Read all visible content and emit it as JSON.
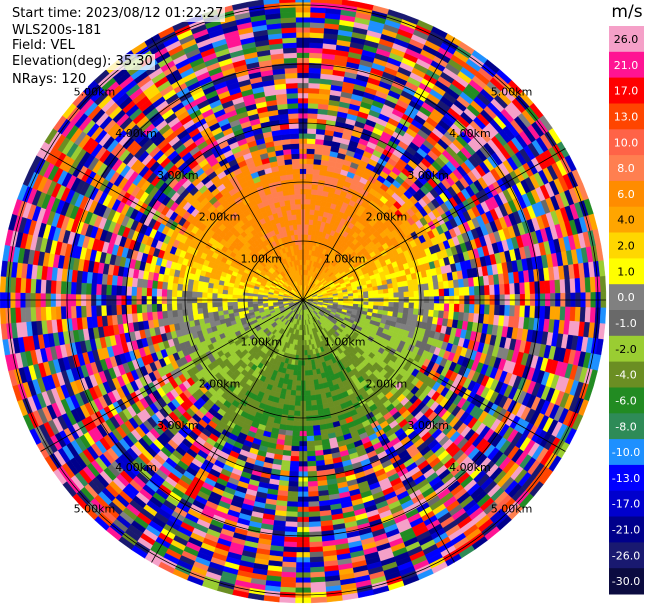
{
  "header": {
    "start_time": "Start time: 2023/08/12 01:22:27",
    "instrument": "WLS200s-181",
    "field": "Field: VEL",
    "elevation": "Elevation(deg): 35.30",
    "nrays": "NRays: 120"
  },
  "chart_data": {
    "type": "heatmap",
    "subtype": "polar-ppi",
    "field": "VEL",
    "units": "m/s",
    "n_rays": 120,
    "elevation_deg": 35.3,
    "range_rings_km": [
      1.0,
      2.0,
      3.0,
      4.0,
      5.0
    ],
    "range_ring_labels": [
      "1.00km",
      "2.00km",
      "3.00km",
      "4.00km",
      "5.00km"
    ],
    "max_range_km": 5.1,
    "grid": true,
    "colorbar": {
      "label": "m/s",
      "position": "right",
      "ticks": [
        26.0,
        21.0,
        17.0,
        13.0,
        10.0,
        8.0,
        6.0,
        4.0,
        2.0,
        1.0,
        0.0,
        -1.0,
        -2.0,
        -4.0,
        -6.0,
        -8.0,
        -10.0,
        -13.0,
        -17.0,
        -21.0,
        -26.0,
        -30.0
      ],
      "tick_labels": [
        "26.0",
        "21.0",
        "17.0",
        "13.0",
        "10.0",
        "8.0",
        "6.0",
        "4.0",
        "2.0",
        "1.0",
        "0.0",
        "-1.0",
        "-2.0",
        "-4.0",
        "-6.0",
        "-8.0",
        "-10.0",
        "-13.0",
        "-17.0",
        "-21.0",
        "-26.0",
        "-30.0"
      ],
      "colors": [
        "#f5a0c8",
        "#ff1493",
        "#ff0000",
        "#ff4500",
        "#ff6347",
        "#ff7f50",
        "#ff8c00",
        "#ffa500",
        "#ffd700",
        "#ffff00",
        "#808080",
        "#696969",
        "#9acd32",
        "#6b8e23",
        "#228b22",
        "#2e8b57",
        "#1e90ff",
        "#0000ff",
        "#0000cd",
        "#00008b",
        "#191970",
        "#0b0b40"
      ]
    },
    "field_summary": {
      "north_near": "positive 2 to 8 m/s (yellow/orange)",
      "south_near": "negative -2 to -8 m/s (green/teal)",
      "east_west_near": "about 0 m/s (gray)",
      "far_range": "noisy, all colors"
    }
  }
}
